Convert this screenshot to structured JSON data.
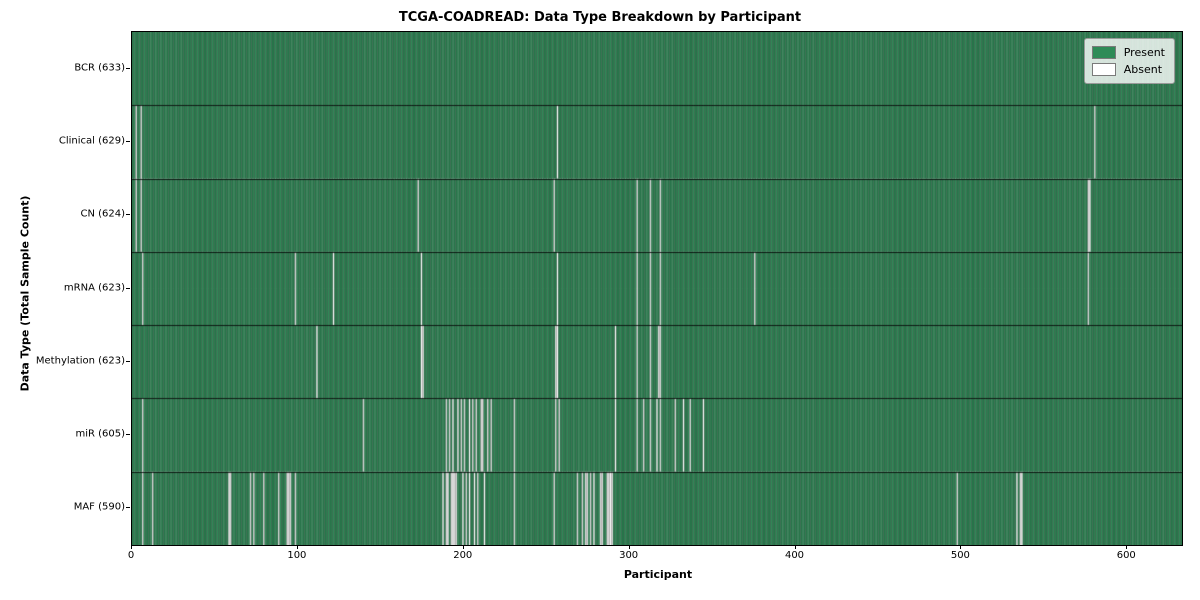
{
  "title": "TCGA-COADREAD: Data Type Breakdown by Participant",
  "xlabel": "Participant",
  "ylabel": "Data Type (Total Sample Count)",
  "legend": {
    "present_label": "Present",
    "absent_label": "Absent"
  },
  "colors": {
    "present": "#2e8b57",
    "absent": "#ffffff",
    "bar_edge": "rgba(0,0,0,0.45)",
    "row_divider": "rgba(0,0,0,0.8)",
    "axis": "#000000"
  },
  "chart_data": {
    "type": "heatmap",
    "title": "TCGA-COADREAD: Data Type Breakdown by Participant",
    "xlabel": "Participant",
    "ylabel": "Data Type (Total Sample Count)",
    "xlim": [
      0,
      633
    ],
    "x_ticks": [
      0,
      100,
      200,
      300,
      400,
      500,
      600
    ],
    "total_participants": 633,
    "grid": false,
    "legend_position": "upper right",
    "legend": [
      {
        "label": "Present",
        "color": "#2e8b57"
      },
      {
        "label": "Absent",
        "color": "#ffffff"
      }
    ],
    "rows": [
      {
        "label": "BCR (633)",
        "data_type": "BCR",
        "present_count": 633,
        "absent_participants": []
      },
      {
        "label": "Clinical (629)",
        "data_type": "Clinical",
        "present_count": 629,
        "absent_participants": [
          2,
          5,
          256,
          580
        ]
      },
      {
        "label": "CN (624)",
        "data_type": "CN",
        "present_count": 624,
        "absent_participants": [
          2,
          5,
          172,
          254,
          304,
          312,
          318,
          576,
          577
        ]
      },
      {
        "label": "mRNA (623)",
        "data_type": "mRNA",
        "present_count": 623,
        "absent_participants": [
          6,
          98,
          121,
          174,
          256,
          304,
          312,
          318,
          375,
          576
        ]
      },
      {
        "label": "Methylation (623)",
        "data_type": "Methylation",
        "present_count": 623,
        "absent_participants": [
          111,
          174,
          175,
          255,
          256,
          291,
          304,
          312,
          317,
          318
        ]
      },
      {
        "label": "miR (605)",
        "data_type": "miR",
        "present_count": 605,
        "absent_participants": [
          6,
          139,
          189,
          191,
          193,
          196,
          198,
          200,
          203,
          205,
          207,
          210,
          211,
          214,
          216,
          230,
          255,
          257,
          291,
          304,
          308,
          312,
          316,
          318,
          327,
          332,
          336,
          344
        ]
      },
      {
        "label": "MAF (590)",
        "data_type": "MAF",
        "present_count": 590,
        "absent_participants": [
          6,
          12,
          58,
          59,
          71,
          73,
          79,
          88,
          93,
          94,
          95,
          98,
          187,
          189,
          190,
          192,
          193,
          194,
          195,
          199,
          201,
          203,
          206,
          208,
          212,
          230,
          254,
          268,
          271,
          273,
          274,
          276,
          278,
          282,
          283,
          286,
          287,
          288,
          289,
          497,
          533,
          535,
          536
        ]
      }
    ]
  }
}
